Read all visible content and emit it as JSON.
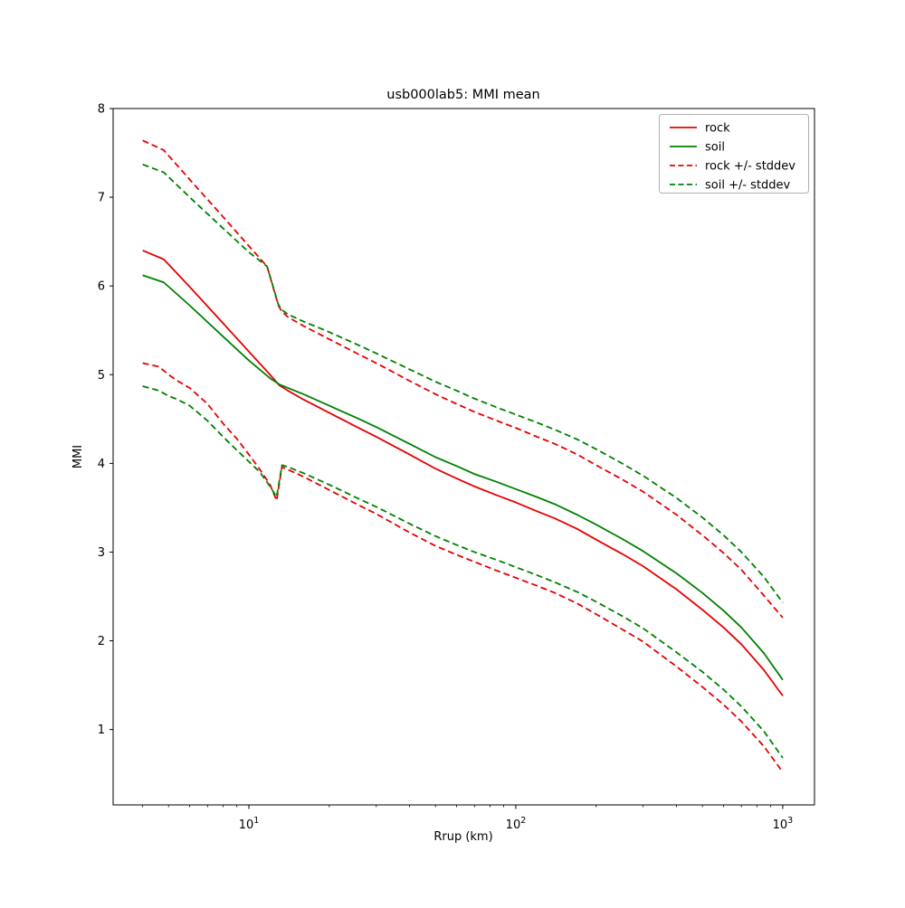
{
  "chart_data": {
    "type": "line",
    "title": "usb000lab5: MMI mean",
    "xlabel": "Rrup (km)",
    "ylabel": "MMI",
    "xscale": "log",
    "xlim": [
      3.1,
      1315
    ],
    "ylim": [
      0.15,
      8.0
    ],
    "grid": false,
    "yticks": [
      1,
      2,
      3,
      4,
      5,
      6,
      7,
      8
    ],
    "xticks": [
      {
        "value": 10,
        "base": "10",
        "exp": "1"
      },
      {
        "value": 100,
        "base": "10",
        "exp": "2"
      },
      {
        "value": 1000,
        "base": "10",
        "exp": "3"
      }
    ],
    "xticks_minor": [
      4,
      5,
      6,
      7,
      8,
      9,
      20,
      30,
      40,
      50,
      60,
      70,
      80,
      90,
      200,
      300,
      400,
      500,
      600,
      700,
      800,
      900
    ],
    "legend_position": "upper right",
    "colors": {
      "rock": "#e60000",
      "soil": "#008000",
      "axis": "#000000",
      "legend_border": "#b0b0b0"
    },
    "series": [
      {
        "name": "rock +/- stddev (upper)",
        "legend_label": "rock +/- stddev",
        "color": "#e60000",
        "style": "dashed",
        "points": [
          [
            4,
            7.64
          ],
          [
            4.8,
            7.53
          ],
          [
            6,
            7.2
          ],
          [
            8,
            6.78
          ],
          [
            10,
            6.45
          ],
          [
            11.7,
            6.22
          ],
          [
            12.9,
            5.78
          ],
          [
            13.3,
            5.71
          ],
          [
            14,
            5.65
          ],
          [
            16,
            5.55
          ],
          [
            20,
            5.4
          ],
          [
            25,
            5.25
          ],
          [
            30,
            5.13
          ],
          [
            40,
            4.93
          ],
          [
            50,
            4.78
          ],
          [
            60,
            4.67
          ],
          [
            70,
            4.58
          ],
          [
            85,
            4.48
          ],
          [
            100,
            4.4
          ],
          [
            120,
            4.3
          ],
          [
            140,
            4.22
          ],
          [
            170,
            4.1
          ],
          [
            200,
            3.98
          ],
          [
            250,
            3.82
          ],
          [
            300,
            3.68
          ],
          [
            400,
            3.42
          ],
          [
            500,
            3.19
          ],
          [
            600,
            2.99
          ],
          [
            700,
            2.8
          ],
          [
            850,
            2.51
          ],
          [
            1000,
            2.26
          ]
        ]
      },
      {
        "name": "soil +/- stddev (upper)",
        "legend_label": "soil +/- stddev",
        "color": "#008000",
        "style": "dashed",
        "points": [
          [
            4,
            7.37
          ],
          [
            4.8,
            7.28
          ],
          [
            6,
            7.0
          ],
          [
            8,
            6.65
          ],
          [
            10,
            6.38
          ],
          [
            11.7,
            6.22
          ],
          [
            12.9,
            5.79
          ],
          [
            13.3,
            5.73
          ],
          [
            14,
            5.68
          ],
          [
            16,
            5.6
          ],
          [
            20,
            5.48
          ],
          [
            25,
            5.35
          ],
          [
            30,
            5.24
          ],
          [
            40,
            5.06
          ],
          [
            50,
            4.92
          ],
          [
            60,
            4.82
          ],
          [
            70,
            4.73
          ],
          [
            85,
            4.63
          ],
          [
            100,
            4.55
          ],
          [
            120,
            4.46
          ],
          [
            140,
            4.38
          ],
          [
            170,
            4.27
          ],
          [
            200,
            4.16
          ],
          [
            250,
            4.0
          ],
          [
            300,
            3.86
          ],
          [
            400,
            3.61
          ],
          [
            500,
            3.39
          ],
          [
            600,
            3.19
          ],
          [
            700,
            3.0
          ],
          [
            850,
            2.72
          ],
          [
            1000,
            2.43
          ]
        ]
      },
      {
        "name": "rock +/- stddev (lower)",
        "legend_label": null,
        "color": "#e60000",
        "style": "dashed",
        "points": [
          [
            4,
            5.13
          ],
          [
            4.6,
            5.09
          ],
          [
            5,
            5.0
          ],
          [
            5.4,
            4.93
          ],
          [
            6,
            4.85
          ],
          [
            7,
            4.67
          ],
          [
            8,
            4.45
          ],
          [
            9,
            4.28
          ],
          [
            10,
            4.1
          ],
          [
            11,
            3.93
          ],
          [
            12,
            3.76
          ],
          [
            12.7,
            3.58
          ],
          [
            13.3,
            3.96
          ],
          [
            14,
            3.93
          ],
          [
            16,
            3.85
          ],
          [
            20,
            3.7
          ],
          [
            25,
            3.55
          ],
          [
            30,
            3.43
          ],
          [
            40,
            3.22
          ],
          [
            50,
            3.07
          ],
          [
            60,
            2.97
          ],
          [
            70,
            2.89
          ],
          [
            85,
            2.79
          ],
          [
            100,
            2.71
          ],
          [
            120,
            2.62
          ],
          [
            140,
            2.54
          ],
          [
            170,
            2.42
          ],
          [
            200,
            2.3
          ],
          [
            250,
            2.13
          ],
          [
            300,
            1.99
          ],
          [
            400,
            1.71
          ],
          [
            500,
            1.48
          ],
          [
            600,
            1.28
          ],
          [
            700,
            1.09
          ],
          [
            850,
            0.81
          ],
          [
            1000,
            0.52
          ]
        ]
      },
      {
        "name": "soil +/- stddev (lower)",
        "legend_label": null,
        "color": "#008000",
        "style": "dashed",
        "points": [
          [
            4,
            4.87
          ],
          [
            4.6,
            4.82
          ],
          [
            5,
            4.76
          ],
          [
            5.4,
            4.72
          ],
          [
            6,
            4.65
          ],
          [
            7,
            4.48
          ],
          [
            8,
            4.3
          ],
          [
            9,
            4.15
          ],
          [
            10,
            4.02
          ],
          [
            11,
            3.9
          ],
          [
            12,
            3.74
          ],
          [
            12.7,
            3.62
          ],
          [
            13.3,
            3.98
          ],
          [
            14,
            3.96
          ],
          [
            16,
            3.89
          ],
          [
            20,
            3.76
          ],
          [
            25,
            3.62
          ],
          [
            30,
            3.51
          ],
          [
            40,
            3.32
          ],
          [
            50,
            3.18
          ],
          [
            60,
            3.08
          ],
          [
            70,
            3.0
          ],
          [
            85,
            2.91
          ],
          [
            100,
            2.83
          ],
          [
            120,
            2.74
          ],
          [
            140,
            2.66
          ],
          [
            170,
            2.55
          ],
          [
            200,
            2.44
          ],
          [
            250,
            2.28
          ],
          [
            300,
            2.14
          ],
          [
            400,
            1.87
          ],
          [
            500,
            1.65
          ],
          [
            600,
            1.45
          ],
          [
            700,
            1.26
          ],
          [
            850,
            0.98
          ],
          [
            1000,
            0.68
          ]
        ]
      },
      {
        "name": "rock",
        "legend_label": "rock",
        "color": "#e60000",
        "style": "solid",
        "points": [
          [
            4,
            6.4
          ],
          [
            4.8,
            6.3
          ],
          [
            6,
            5.99
          ],
          [
            8,
            5.58
          ],
          [
            10,
            5.26
          ],
          [
            12,
            5.0
          ],
          [
            13,
            4.88
          ],
          [
            14,
            4.82
          ],
          [
            16,
            4.72
          ],
          [
            20,
            4.57
          ],
          [
            25,
            4.42
          ],
          [
            30,
            4.3
          ],
          [
            40,
            4.1
          ],
          [
            50,
            3.94
          ],
          [
            60,
            3.83
          ],
          [
            70,
            3.74
          ],
          [
            85,
            3.64
          ],
          [
            100,
            3.56
          ],
          [
            120,
            3.46
          ],
          [
            140,
            3.38
          ],
          [
            170,
            3.26
          ],
          [
            200,
            3.14
          ],
          [
            250,
            2.98
          ],
          [
            300,
            2.84
          ],
          [
            400,
            2.58
          ],
          [
            500,
            2.35
          ],
          [
            600,
            2.15
          ],
          [
            700,
            1.96
          ],
          [
            850,
            1.67
          ],
          [
            1000,
            1.38
          ]
        ]
      },
      {
        "name": "soil",
        "legend_label": "soil",
        "color": "#008000",
        "style": "solid",
        "points": [
          [
            4,
            6.12
          ],
          [
            4.8,
            6.04
          ],
          [
            6,
            5.78
          ],
          [
            8,
            5.43
          ],
          [
            10,
            5.16
          ],
          [
            12,
            4.96
          ],
          [
            13,
            4.89
          ],
          [
            14,
            4.85
          ],
          [
            16,
            4.78
          ],
          [
            20,
            4.65
          ],
          [
            25,
            4.52
          ],
          [
            30,
            4.41
          ],
          [
            40,
            4.22
          ],
          [
            50,
            4.07
          ],
          [
            60,
            3.97
          ],
          [
            70,
            3.88
          ],
          [
            85,
            3.79
          ],
          [
            100,
            3.71
          ],
          [
            120,
            3.62
          ],
          [
            140,
            3.54
          ],
          [
            170,
            3.42
          ],
          [
            200,
            3.31
          ],
          [
            250,
            3.15
          ],
          [
            300,
            3.01
          ],
          [
            400,
            2.76
          ],
          [
            500,
            2.54
          ],
          [
            600,
            2.34
          ],
          [
            700,
            2.15
          ],
          [
            850,
            1.86
          ],
          [
            1000,
            1.56
          ]
        ]
      }
    ],
    "legend_entries": [
      {
        "label": "rock",
        "color": "#e60000",
        "style": "solid"
      },
      {
        "label": "soil",
        "color": "#008000",
        "style": "solid"
      },
      {
        "label": "rock +/- stddev",
        "color": "#e60000",
        "style": "dashed"
      },
      {
        "label": "soil +/- stddev",
        "color": "#008000",
        "style": "dashed"
      }
    ]
  }
}
